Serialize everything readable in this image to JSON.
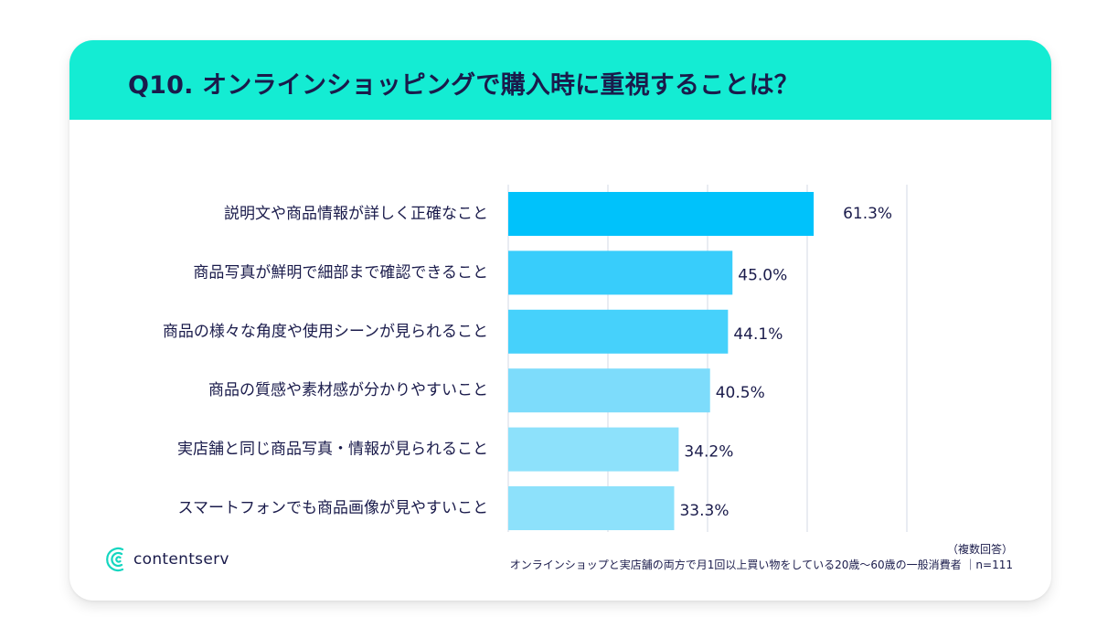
{
  "title": "Q10. オンラインショッピングで購入時に重視することは？",
  "brand": {
    "name": "contentserv"
  },
  "footnote": {
    "line1": "（複数回答）",
    "line2": "オンラインショップと実店舗の両方で月1回以上買い物をしている20歳〜60歳の一般消費者 ｜n=111"
  },
  "colors": {
    "header": "#14ecd3",
    "title_text": "#1a1b4b",
    "bars": [
      "#00c2fb",
      "#38cdfb",
      "#46d1fb",
      "#7ddcfb",
      "#8de1fb",
      "#8de1fb"
    ]
  },
  "chart_data": {
    "type": "bar",
    "orientation": "horizontal",
    "categories": [
      "説明文や商品情報が詳しく正確なこと",
      "商品写真が鮮明で細部まで確認できること",
      "商品の様々な角度や使用シーンが見られること",
      "商品の質感や素材感が分かりやすいこと",
      "実店舗と同じ商品写真・情報が見られること",
      "スマートフォンでも商品画像が見やすいこと"
    ],
    "values": [
      61.3,
      45.0,
      44.1,
      40.5,
      34.2,
      33.3
    ],
    "value_labels": [
      "61.3%",
      "45.0%",
      "44.1%",
      "40.5%",
      "34.2%",
      "33.3%"
    ],
    "xlim": [
      0,
      80
    ],
    "gridlines": [
      0,
      20,
      40,
      60,
      80
    ],
    "grid": true,
    "legend": "none"
  }
}
